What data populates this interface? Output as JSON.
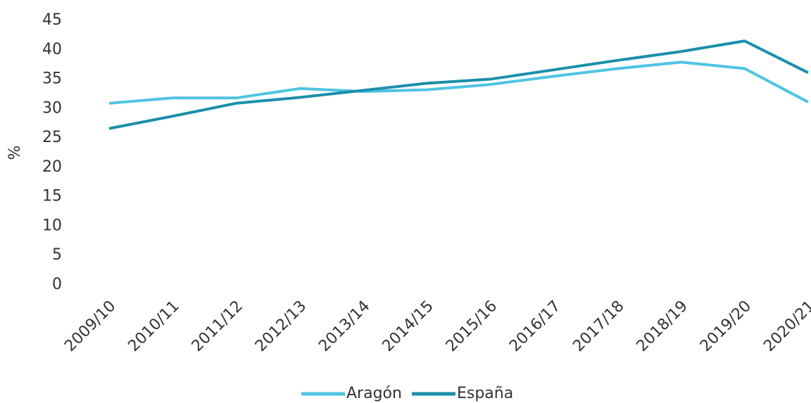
{
  "chart_data": {
    "type": "line",
    "y_label": "%",
    "categories": [
      "2009/10",
      "2010/11",
      "2011/12",
      "2012/13",
      "2013/14",
      "2014/15",
      "2015/16",
      "2016/17",
      "2017/18",
      "2018/19",
      "2019/20",
      "2020/21"
    ],
    "series": [
      {
        "name": "Aragón",
        "color": "#4ec4e2",
        "values": [
          30.9,
          31.8,
          31.8,
          33.4,
          32.9,
          33.2,
          34.1,
          35.5,
          36.8,
          37.9,
          36.8,
          31.1
        ]
      },
      {
        "name": "España",
        "color": "#1a8faa",
        "values": [
          26.6,
          28.7,
          30.9,
          31.9,
          33.1,
          34.3,
          35.0,
          36.6,
          38.2,
          39.7,
          41.5,
          36.1
        ]
      }
    ],
    "ylim": [
      0,
      45
    ],
    "yticks": [
      0,
      5,
      10,
      15,
      20,
      25,
      30,
      35,
      40,
      45
    ],
    "grid": false,
    "legend": "bottom"
  }
}
